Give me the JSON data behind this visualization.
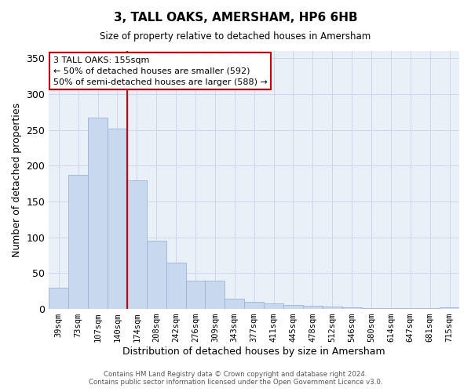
{
  "title": "3, TALL OAKS, AMERSHAM, HP6 6HB",
  "subtitle": "Size of property relative to detached houses in Amersham",
  "xlabel": "Distribution of detached houses by size in Amersham",
  "ylabel": "Number of detached properties",
  "bar_labels": [
    "39sqm",
    "73sqm",
    "107sqm",
    "140sqm",
    "174sqm",
    "208sqm",
    "242sqm",
    "276sqm",
    "309sqm",
    "343sqm",
    "377sqm",
    "411sqm",
    "445sqm",
    "478sqm",
    "512sqm",
    "546sqm",
    "580sqm",
    "614sqm",
    "647sqm",
    "681sqm",
    "715sqm"
  ],
  "bar_values": [
    30,
    187,
    267,
    252,
    179,
    95,
    65,
    40,
    40,
    14,
    10,
    8,
    6,
    4,
    3,
    2,
    1,
    1,
    1,
    1,
    2
  ],
  "bar_color": "#c8d9ef",
  "bar_edge_color": "#9ab3d5",
  "vline_position": 3.5,
  "vline_color": "#cc0000",
  "annotation_title": "3 TALL OAKS: 155sqm",
  "annotation_line1": "← 50% of detached houses are smaller (592)",
  "annotation_line2": "50% of semi-detached houses are larger (588) →",
  "annotation_box_color": "#ffffff",
  "annotation_box_edge": "#cc0000",
  "ylim": [
    0,
    360
  ],
  "yticks": [
    0,
    50,
    100,
    150,
    200,
    250,
    300,
    350
  ],
  "footer1": "Contains HM Land Registry data © Crown copyright and database right 2024.",
  "footer2": "Contains public sector information licensed under the Open Government Licence v3.0.",
  "background_color": "#ffffff",
  "plot_bg_color": "#eaf0f8",
  "grid_color": "#c8d4e8"
}
